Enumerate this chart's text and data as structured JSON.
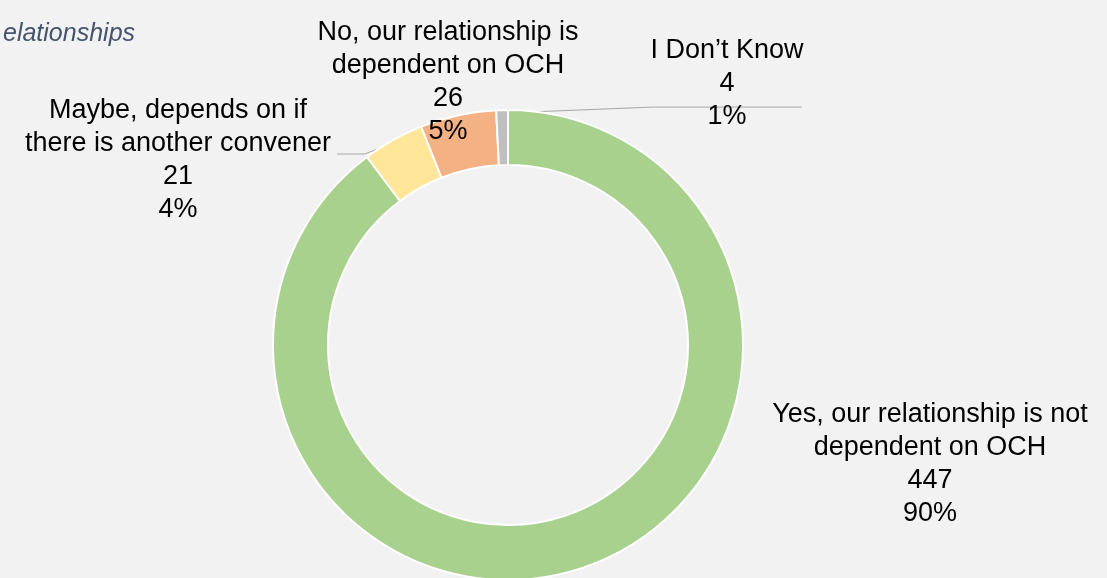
{
  "chart_data": {
    "type": "donut",
    "subtitle": "elationships",
    "categories": [
      "Yes, our relationship is not\ndependent on OCH",
      "Maybe, depends on if\nthere is another convener",
      "No, our relationship is\ndependent on OCH",
      "I Don’t Know"
    ],
    "values": [
      447,
      21,
      26,
      4
    ],
    "colors": [
      "#a9d18e",
      "#ffe699",
      "#f4b183",
      "#bfbfbf"
    ],
    "value_labels": [
      "447\n90%",
      "21\n4%",
      "26\n5%",
      "4\n1%"
    ],
    "legend": false
  }
}
